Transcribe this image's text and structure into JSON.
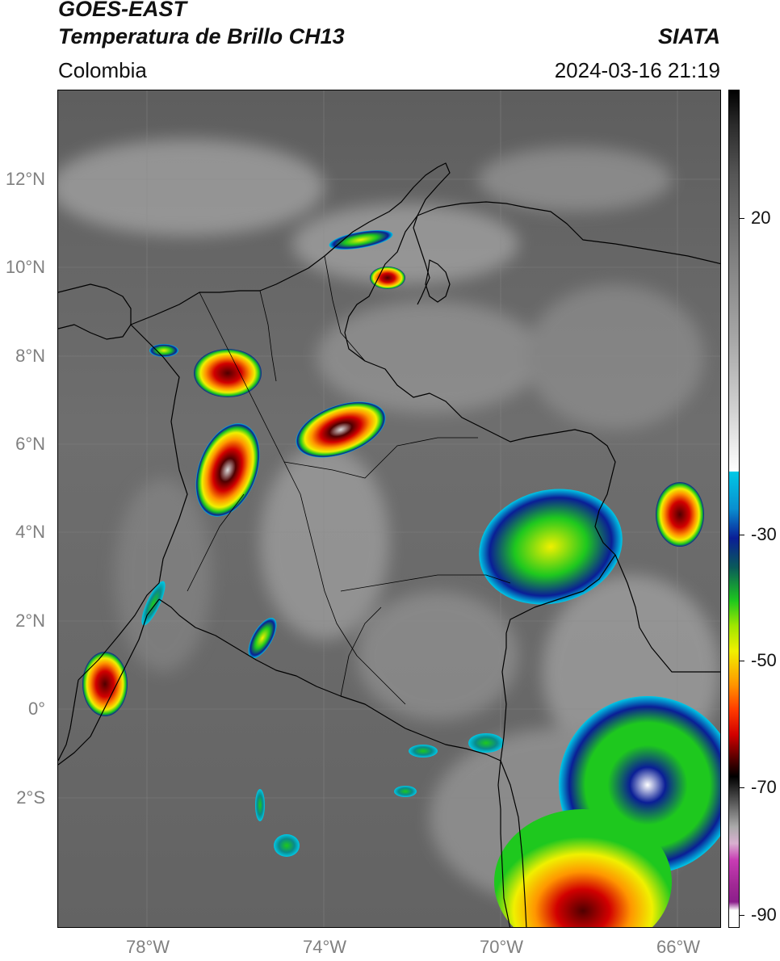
{
  "header": {
    "title_line1": "GOES-EAST",
    "title_line2": "Temperatura de Brillo CH13",
    "organization": "SIATA",
    "region": "Colombia",
    "timestamp": "2024-03-16 21:19"
  },
  "map": {
    "lat_labels": [
      "12°N",
      "10°N",
      "8°N",
      "6°N",
      "4°N",
      "2°N",
      "0°",
      "2°S"
    ],
    "lon_labels": [
      "78°W",
      "74°W",
      "70°W",
      "66°W"
    ],
    "lat_range": [
      -4.8,
      14.0
    ],
    "lon_range": [
      -80.0,
      -65.0
    ],
    "background_color": "#6b6b6b",
    "border_color": "#000000",
    "gridlines": true
  },
  "colorbar": {
    "tick_labels": [
      "20",
      "-30",
      "-50",
      "-70",
      "-90"
    ],
    "colors": {
      "warm_top": "#000000",
      "gray_mid": "#808080",
      "white": "#ffffff",
      "cyan": "#00c8e6",
      "blue": "#0a1e96",
      "green": "#1ec81e",
      "yellow": "#f0f000",
      "orange": "#ff9600",
      "red": "#d20000",
      "dark_red": "#500000",
      "black": "#000000",
      "magenta": "#c83cb4",
      "purple": "#8c1e8c"
    }
  }
}
